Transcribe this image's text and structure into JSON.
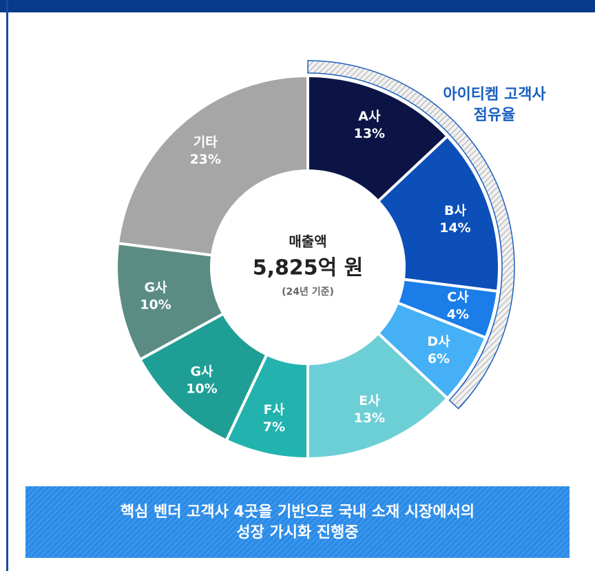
{
  "chart_data": {
    "type": "pie",
    "categories": [
      "A사",
      "B사",
      "C사",
      "D사",
      "E사",
      "F사",
      "G사",
      "G사",
      "기타"
    ],
    "values": [
      13,
      14,
      4,
      6,
      13,
      7,
      10,
      10,
      23
    ],
    "value_labels": [
      "13%",
      "14%",
      "4%",
      "6%",
      "13%",
      "7%",
      "10%",
      "10%",
      "23%"
    ],
    "colors": [
      "#0b1445",
      "#0d4fb8",
      "#1a7de8",
      "#45b0f5",
      "#6dcfd6",
      "#22b3ae",
      "#1e9e94",
      "#5a8c84",
      "#a6a6a6"
    ],
    "center": {
      "label": "매출액",
      "amount": "5,825억 원",
      "note": "(24년 기준)"
    },
    "annotation": {
      "lines": [
        "아이티켐 고객사",
        "점유율"
      ],
      "span": [
        0,
        3
      ]
    },
    "banner": [
      "핵심 벤더 고객사 4곳을 기반으로 국내 소재 시장에서의",
      "성장 가시화 진행중"
    ]
  }
}
